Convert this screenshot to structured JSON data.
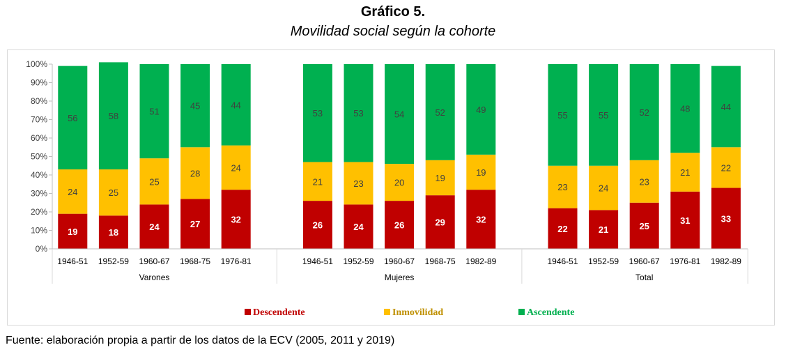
{
  "title": "Gráfico 5.",
  "subtitle": "Movilidad social según la cohorte",
  "source": "Fuente: elaboración propia a partir de los datos de la ECV (2005, 2011 y 2019)",
  "chart_data": {
    "type": "bar",
    "stacked": true,
    "ylim": [
      0,
      100
    ],
    "yticks": [
      "0%",
      "10%",
      "20%",
      "30%",
      "40%",
      "50%",
      "60%",
      "70%",
      "80%",
      "90%",
      "100%"
    ],
    "grid": false,
    "legend_position": "bottom",
    "groups": [
      {
        "name": "Varones",
        "categories": [
          "1946-51",
          "1952-59",
          "1960-67",
          "1968-75",
          "1976-81"
        ]
      },
      {
        "name": "Mujeres",
        "categories": [
          "1946-51",
          "1952-59",
          "1960-67",
          "1968-75",
          "1982-89"
        ]
      },
      {
        "name": "Total",
        "categories": [
          "1946-51",
          "1952-59",
          "1960-67",
          "1976-81",
          "1982-89"
        ]
      }
    ],
    "series": [
      {
        "name": "Descendente",
        "color": "#c00000",
        "label_color": "#ffffff",
        "values": [
          [
            19,
            18,
            24,
            27,
            32
          ],
          [
            26,
            24,
            26,
            29,
            32
          ],
          [
            22,
            21,
            25,
            31,
            33
          ]
        ]
      },
      {
        "name": "Inmovilidad",
        "color": "#ffc000",
        "label_color": "#404040",
        "values": [
          [
            24,
            25,
            25,
            28,
            24
          ],
          [
            21,
            23,
            20,
            19,
            19
          ],
          [
            23,
            24,
            23,
            21,
            22
          ]
        ]
      },
      {
        "name": "Ascendente",
        "color": "#00b050",
        "label_color": "#404040",
        "values": [
          [
            56,
            58,
            51,
            45,
            44
          ],
          [
            53,
            53,
            54,
            52,
            49
          ],
          [
            55,
            55,
            52,
            48,
            44
          ]
        ]
      }
    ],
    "legend_text_colors": [
      "#c00000",
      "#bf9000",
      "#00b050"
    ]
  }
}
